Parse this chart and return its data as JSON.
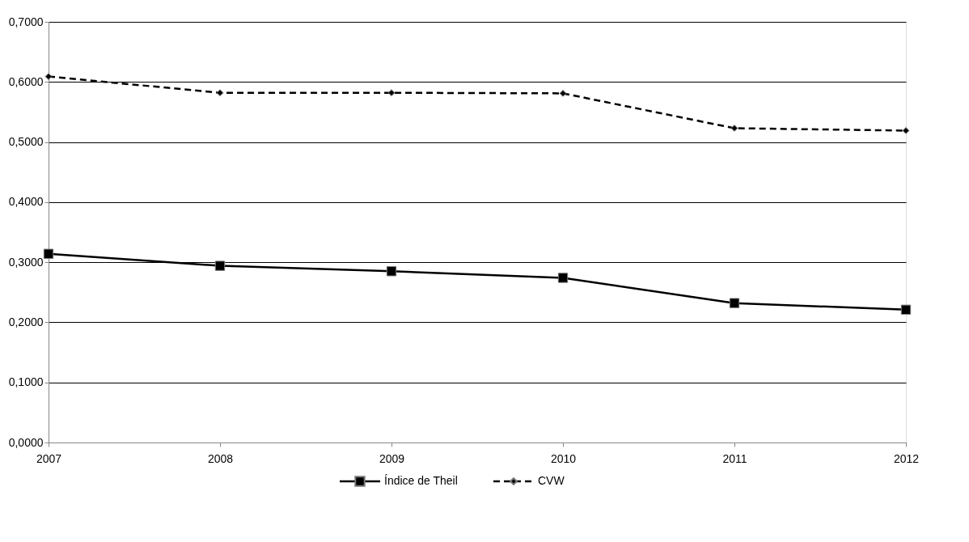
{
  "chart_data": {
    "type": "line",
    "categories": [
      "2007",
      "2008",
      "2009",
      "2010",
      "2011",
      "2012"
    ],
    "series": [
      {
        "name": "Índice de Theil",
        "color": "#000000",
        "marker": "square",
        "line_style": "solid",
        "values": [
          0.314,
          0.294,
          0.285,
          0.274,
          0.232,
          0.221
        ]
      },
      {
        "name": "CVW",
        "color": "#000000",
        "marker": "diamond",
        "line_style": "dashed",
        "values": [
          0.609,
          0.582,
          0.582,
          0.581,
          0.523,
          0.519
        ]
      }
    ],
    "ylim": [
      0,
      0.7
    ],
    "yticks": [
      {
        "value": 0,
        "label": "0,0000"
      },
      {
        "value": 0.1,
        "label": "0,1000"
      },
      {
        "value": 0.2,
        "label": "0,2000"
      },
      {
        "value": 0.3,
        "label": "0,3000"
      },
      {
        "value": 0.4,
        "label": "0,4000"
      },
      {
        "value": 0.5,
        "label": "0,5000"
      },
      {
        "value": 0.6,
        "label": "0,6000"
      },
      {
        "value": 0.7,
        "label": "0,7000"
      }
    ],
    "grid": "y",
    "legend": "bottom"
  }
}
